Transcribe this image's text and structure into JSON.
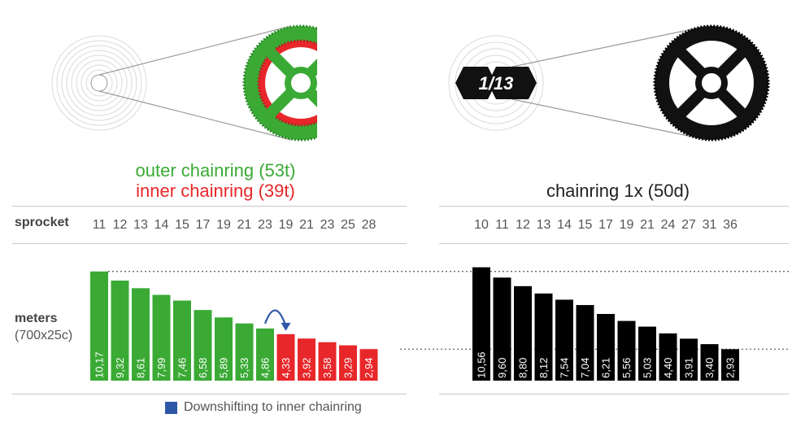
{
  "headers": {
    "left_outer": "outer chainring (53t)",
    "left_inner": "inner chainring (39t)",
    "right": "chainring 1x (50d)"
  },
  "logo_text": "1/13",
  "row_labels": {
    "sprocket": "sprocket",
    "meters": "meters",
    "meters_sub": "(700x25c)"
  },
  "legend": {
    "text": "Downshifting to inner chainring",
    "color": "#2f57a7"
  },
  "colors": {
    "green": "#3aaa35",
    "red": "#e8272a",
    "black": "#000000",
    "arrow": "#2f57a7"
  },
  "chart_data": [
    {
      "type": "bar",
      "series": [
        {
          "name": "outer chainring (53t)",
          "color": "#3aaa35",
          "categories": [
            "11",
            "12",
            "13",
            "14",
            "15",
            "17",
            "19",
            "21",
            "23"
          ],
          "values": [
            10.17,
            9.32,
            8.61,
            7.99,
            7.46,
            6.58,
            5.89,
            5.33,
            4.86
          ],
          "labels": [
            "10,17",
            "9,32",
            "8,61",
            "7,99",
            "7,46",
            "6,58",
            "5,89",
            "5,33",
            "4,86"
          ]
        },
        {
          "name": "inner chainring (39t)",
          "color": "#e8272a",
          "categories": [
            "19",
            "21",
            "23",
            "25",
            "28"
          ],
          "values": [
            4.33,
            3.92,
            3.58,
            3.29,
            2.94
          ],
          "labels": [
            "4,33",
            "3,92",
            "3,58",
            "3,29",
            "2,94"
          ]
        }
      ]
    },
    {
      "type": "bar",
      "series": [
        {
          "name": "chainring 1x (50d)",
          "color": "#000000",
          "categories": [
            "10",
            "11",
            "12",
            "13",
            "14",
            "15",
            "17",
            "19",
            "21",
            "24",
            "27",
            "31",
            "36"
          ],
          "values": [
            10.56,
            9.6,
            8.8,
            8.12,
            7.54,
            7.04,
            6.21,
            5.56,
            5.03,
            4.4,
            3.91,
            3.4,
            2.93
          ],
          "labels": [
            "10,56",
            "9,60",
            "8,80",
            "8,12",
            "7,54",
            "7,04",
            "6,21",
            "5,56",
            "5,03",
            "4,40",
            "3,91",
            "3,40",
            "2,93"
          ]
        }
      ]
    }
  ]
}
